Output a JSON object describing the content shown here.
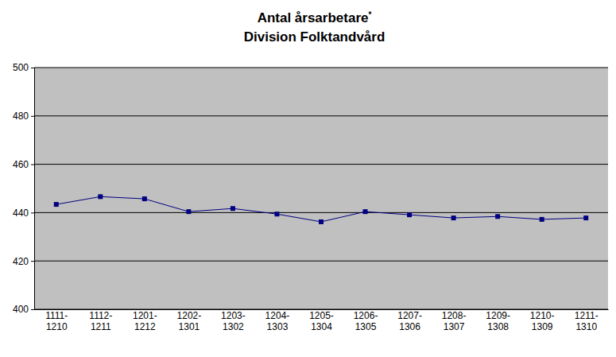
{
  "chart_data": {
    "type": "line",
    "title": "Antal årsarbetare*",
    "subtitle": "Division Folktandvård",
    "categories": [
      "1111-1210",
      "1112-1211",
      "1201-1212",
      "1202-1301",
      "1203-1302",
      "1204-1303",
      "1205-1304",
      "1206-1305",
      "1207-1306",
      "1208-1307",
      "1209-1308",
      "1210-1309",
      "1211-1310"
    ],
    "values": [
      443.4,
      446.6,
      445.7,
      440.4,
      441.7,
      439.4,
      436.2,
      440.4,
      439.1,
      437.8,
      438.4,
      437.2,
      437.8
    ],
    "color": "#000080",
    "marker": "square",
    "ylim": [
      400,
      500
    ],
    "yticks": [
      400,
      420,
      440,
      460,
      480,
      500
    ],
    "grid": true
  }
}
